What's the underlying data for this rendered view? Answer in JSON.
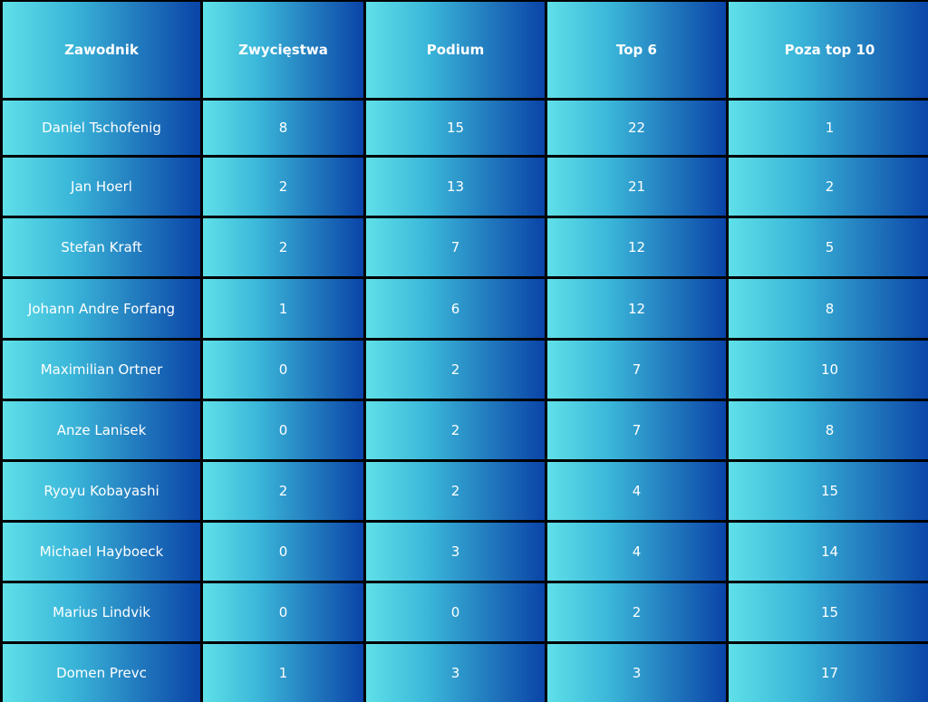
{
  "chart_data": {
    "type": "table",
    "columns": [
      "Zawodnik",
      "Zwycięstwa",
      "Podium",
      "Top 6",
      "Poza top 10"
    ],
    "rows": [
      [
        "Daniel Tschofenig",
        "8",
        "15",
        "22",
        "1"
      ],
      [
        "Jan Hoerl",
        "2",
        "13",
        "21",
        "2"
      ],
      [
        "Stefan Kraft",
        "2",
        "7",
        "12",
        "5"
      ],
      [
        "Johann Andre Forfang",
        "1",
        "6",
        "12",
        "8"
      ],
      [
        "Maximilian Ortner",
        "0",
        "2",
        "7",
        "10"
      ],
      [
        "Anze Lanisek",
        "0",
        "2",
        "7",
        "8"
      ],
      [
        "Ryoyu Kobayashi",
        "2",
        "2",
        "4",
        "15"
      ],
      [
        "Michael Hayboeck",
        "0",
        "3",
        "4",
        "14"
      ],
      [
        "Marius Lindvik",
        "0",
        "0",
        "2",
        "15"
      ],
      [
        "Domen Prevc",
        "1",
        "3",
        "3",
        "17"
      ]
    ]
  },
  "colors": {
    "cell_gradient_start": "#5fe0e8",
    "cell_gradient_end": "#0a44a8",
    "grid_line": "#000000",
    "text": "#ffffff"
  }
}
